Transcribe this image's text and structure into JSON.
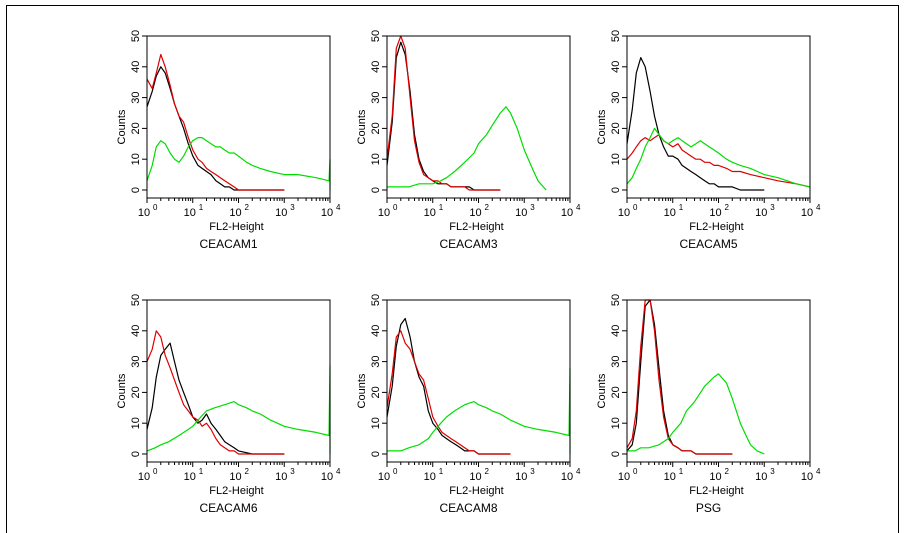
{
  "chart_data": {
    "type": "line",
    "layout": "2x3 grid of flow cytometry histograms",
    "x_scale": "log",
    "xlim": [
      1,
      10000
    ],
    "ylim": [
      0,
      50
    ],
    "xlabel": "FL2-Height",
    "ylabel": "Counts",
    "x_tick_values": [
      1,
      10,
      100,
      1000,
      10000
    ],
    "x_tick_labels": [
      {
        "base": "10",
        "exp": "0"
      },
      {
        "base": "10",
        "exp": "1"
      },
      {
        "base": "10",
        "exp": "2"
      },
      {
        "base": "10",
        "exp": "3"
      },
      {
        "base": "10",
        "exp": "4"
      }
    ],
    "y_ticks": [
      0,
      10,
      20,
      30,
      40,
      50
    ],
    "y_tick_labels": [
      "0",
      "10",
      "20",
      "30",
      "40",
      "50"
    ],
    "grid": false,
    "legend": "none",
    "series_colors": {
      "black": "#000000",
      "red": "#dd0000",
      "green": "#00dd00"
    },
    "panels": [
      {
        "title": "CEACAM1",
        "series": [
          {
            "color": "black",
            "x": [
              1,
              1.3,
              1.6,
              2,
              2.5,
              3.2,
              4,
              5,
              6.3,
              8,
              10,
              13,
              16,
              20,
              25,
              32,
              40,
              50,
              63,
              80,
              100,
              150,
              300,
              1000
            ],
            "y": [
              27,
              32,
              37,
              40,
              38,
              33,
              28,
              24,
              20,
              15,
              11,
              8,
              7,
              6,
              5,
              3,
              2,
              1,
              1,
              0,
              0,
              0,
              0,
              0
            ]
          },
          {
            "color": "red",
            "x": [
              1,
              1.3,
              1.6,
              2,
              2.5,
              3.2,
              4,
              5,
              6.3,
              8,
              10,
              13,
              16,
              20,
              25,
              32,
              40,
              50,
              63,
              80,
              100,
              150,
              300,
              1000
            ],
            "y": [
              36,
              33,
              38,
              44,
              40,
              34,
              28,
              24,
              22,
              17,
              13,
              10,
              9,
              7,
              6,
              5,
              4,
              3,
              2,
              1,
              0,
              0,
              0,
              0
            ]
          },
          {
            "color": "green",
            "x": [
              1,
              1.3,
              1.6,
              2,
              2.5,
              3.2,
              4,
              5,
              6.3,
              8,
              10,
              13,
              16,
              20,
              25,
              32,
              40,
              50,
              63,
              80,
              100,
              150,
              200,
              300,
              500,
              1000,
              2000,
              5000,
              9500,
              10000,
              10000
            ],
            "y": [
              3,
              8,
              14,
              16,
              15,
              12,
              10,
              9,
              11,
              14,
              16,
              17,
              17,
              16,
              15,
              14,
              14,
              13,
              12,
              12,
              11,
              9,
              8,
              7,
              6,
              5,
              5,
              4,
              3,
              10,
              0
            ]
          }
        ]
      },
      {
        "title": "CEACAM3",
        "series": [
          {
            "color": "black",
            "x": [
              1,
              1.3,
              1.6,
              2,
              2.5,
              3.2,
              4,
              5,
              6.3,
              8,
              10,
              13,
              16,
              20,
              25,
              32,
              40,
              50,
              63,
              80,
              100,
              150,
              300
            ],
            "y": [
              8,
              22,
              43,
              48,
              44,
              32,
              18,
              10,
              6,
              4,
              3,
              2,
              2,
              2,
              1,
              1,
              1,
              1,
              1,
              0,
              0,
              0,
              0
            ]
          },
          {
            "color": "red",
            "x": [
              1,
              1.3,
              1.6,
              2,
              2.5,
              3.2,
              4,
              5,
              6.3,
              8,
              10,
              13,
              16,
              20,
              25,
              32,
              40,
              50,
              63,
              80,
              100,
              150,
              300
            ],
            "y": [
              10,
              24,
              46,
              50,
              46,
              30,
              16,
              9,
              5,
              4,
              3,
              3,
              2,
              2,
              1,
              1,
              1,
              1,
              0,
              0,
              0,
              0,
              0
            ]
          },
          {
            "color": "green",
            "x": [
              1,
              1.5,
              2,
              3,
              5,
              8,
              10,
              15,
              20,
              30,
              50,
              80,
              100,
              150,
              200,
              300,
              400,
              500,
              700,
              1000,
              1500,
              2000,
              3000
            ],
            "y": [
              1,
              1,
              1,
              1,
              2,
              2,
              2,
              3,
              4,
              6,
              9,
              12,
              15,
              18,
              21,
              25,
              27,
              25,
              20,
              13,
              7,
              3,
              0
            ]
          }
        ]
      },
      {
        "title": "CEACAM5",
        "series": [
          {
            "color": "black",
            "x": [
              1,
              1.3,
              1.6,
              2,
              2.5,
              3.2,
              4,
              5,
              6.3,
              8,
              10,
              13,
              16,
              20,
              25,
              32,
              40,
              50,
              63,
              80,
              100,
              150,
              200,
              300,
              1000
            ],
            "y": [
              15,
              26,
              38,
              43,
              40,
              32,
              24,
              18,
              14,
              11,
              11,
              10,
              8,
              7,
              6,
              5,
              4,
              3,
              2,
              2,
              1,
              1,
              1,
              0,
              0
            ]
          },
          {
            "color": "red",
            "x": [
              1,
              1.3,
              1.6,
              2,
              2.5,
              3.2,
              4,
              5,
              6.3,
              8,
              10,
              13,
              16,
              20,
              25,
              32,
              40,
              50,
              63,
              80,
              100,
              150,
              200,
              300,
              500,
              1000,
              2000,
              5000,
              10000
            ],
            "y": [
              10,
              12,
              14,
              16,
              17,
              16,
              17,
              18,
              16,
              15,
              14,
              15,
              13,
              12,
              11,
              10,
              10,
              9,
              9,
              8,
              8,
              7,
              6,
              6,
              5,
              4,
              3,
              2,
              1
            ]
          },
          {
            "color": "green",
            "x": [
              1,
              1.3,
              1.6,
              2,
              2.5,
              3.2,
              4,
              5,
              6.3,
              8,
              10,
              13,
              16,
              20,
              25,
              32,
              40,
              50,
              63,
              80,
              100,
              150,
              200,
              300,
              500,
              1000,
              2000,
              5000,
              10000
            ],
            "y": [
              2,
              4,
              7,
              10,
              14,
              17,
              20,
              18,
              16,
              15,
              16,
              17,
              16,
              15,
              14,
              15,
              16,
              15,
              14,
              13,
              12,
              10,
              9,
              8,
              7,
              5,
              4,
              2,
              1
            ]
          }
        ]
      },
      {
        "title": "CEACAM6",
        "series": [
          {
            "color": "black",
            "x": [
              1,
              1.3,
              1.6,
              2,
              2.5,
              3.2,
              4,
              5,
              6.3,
              8,
              10,
              13,
              16,
              20,
              25,
              32,
              40,
              50,
              63,
              80,
              100,
              200,
              500,
              1000
            ],
            "y": [
              8,
              15,
              25,
              32,
              34,
              36,
              30,
              24,
              20,
              16,
              12,
              10,
              11,
              13,
              10,
              8,
              6,
              4,
              3,
              2,
              1,
              0,
              0,
              0
            ]
          },
          {
            "color": "red",
            "x": [
              1,
              1.3,
              1.6,
              2,
              2.5,
              3.2,
              4,
              5,
              6.3,
              8,
              10,
              13,
              16,
              20,
              25,
              32,
              40,
              50,
              63,
              80,
              100,
              200,
              500,
              1000
            ],
            "y": [
              30,
              34,
              40,
              38,
              32,
              28,
              24,
              20,
              16,
              14,
              12,
              11,
              9,
              10,
              8,
              5,
              3,
              2,
              1,
              1,
              0,
              0,
              0,
              0
            ]
          },
          {
            "color": "green",
            "x": [
              1,
              1.5,
              2,
              3,
              5,
              8,
              10,
              15,
              20,
              30,
              50,
              80,
              100,
              150,
              200,
              300,
              500,
              1000,
              2000,
              5000,
              9500,
              10000,
              10000
            ],
            "y": [
              1,
              2,
              3,
              4,
              6,
              8,
              9,
              12,
              14,
              15,
              16,
              17,
              16,
              15,
              14,
              13,
              11,
              9,
              8,
              7,
              6,
              29,
              0
            ]
          }
        ]
      },
      {
        "title": "CEACAM8",
        "series": [
          {
            "color": "black",
            "x": [
              1,
              1.3,
              1.6,
              2,
              2.5,
              3.2,
              4,
              5,
              6.3,
              8,
              10,
              13,
              16,
              20,
              25,
              32,
              40,
              50,
              63,
              80,
              100,
              200,
              500
            ],
            "y": [
              12,
              22,
              35,
              42,
              44,
              38,
              30,
              25,
              22,
              14,
              10,
              8,
              6,
              5,
              4,
              3,
              2,
              1,
              1,
              1,
              0,
              0,
              0
            ]
          },
          {
            "color": "red",
            "x": [
              1,
              1.3,
              1.6,
              2,
              2.5,
              3.2,
              4,
              5,
              6.3,
              8,
              10,
              13,
              16,
              20,
              25,
              32,
              40,
              50,
              63,
              80,
              100,
              200,
              500
            ],
            "y": [
              15,
              26,
              38,
              40,
              36,
              34,
              30,
              26,
              24,
              18,
              12,
              9,
              7,
              6,
              5,
              4,
              3,
              2,
              1,
              1,
              0,
              0,
              0
            ]
          },
          {
            "color": "green",
            "x": [
              1,
              1.5,
              2,
              3,
              5,
              8,
              10,
              15,
              20,
              30,
              50,
              80,
              100,
              150,
              200,
              300,
              500,
              1000,
              2000,
              5000,
              9500,
              10000,
              10000
            ],
            "y": [
              1,
              1,
              1,
              2,
              3,
              5,
              7,
              10,
              12,
              14,
              16,
              17,
              16,
              15,
              14,
              13,
              11,
              9,
              8,
              7,
              6,
              28,
              0
            ]
          }
        ]
      },
      {
        "title": "PSG",
        "series": [
          {
            "color": "black",
            "x": [
              1,
              1.3,
              1.6,
              2,
              2.5,
              3.2,
              4,
              5,
              6.3,
              8,
              10,
              13,
              16,
              20,
              25,
              32,
              40,
              50,
              100,
              200
            ],
            "y": [
              1,
              3,
              10,
              30,
              48,
              50,
              42,
              28,
              14,
              6,
              3,
              2,
              1,
              1,
              1,
              0,
              0,
              0,
              0,
              0
            ]
          },
          {
            "color": "red",
            "x": [
              1,
              1.3,
              1.6,
              2,
              2.5,
              3.2,
              4,
              5,
              6.3,
              8,
              10,
              13,
              16,
              20,
              25,
              32,
              40,
              50,
              100,
              200
            ],
            "y": [
              2,
              5,
              14,
              35,
              50,
              52,
              40,
              24,
              12,
              5,
              3,
              2,
              1,
              1,
              1,
              0,
              0,
              0,
              0,
              0
            ]
          },
          {
            "color": "green",
            "x": [
              1,
              1.5,
              2,
              3,
              5,
              8,
              10,
              15,
              20,
              30,
              50,
              80,
              100,
              150,
              200,
              300,
              400,
              500,
              700,
              1000
            ],
            "y": [
              1,
              1,
              2,
              2,
              3,
              5,
              7,
              10,
              14,
              17,
              22,
              25,
              26,
              23,
              18,
              10,
              6,
              3,
              1,
              0
            ]
          }
        ]
      }
    ]
  }
}
